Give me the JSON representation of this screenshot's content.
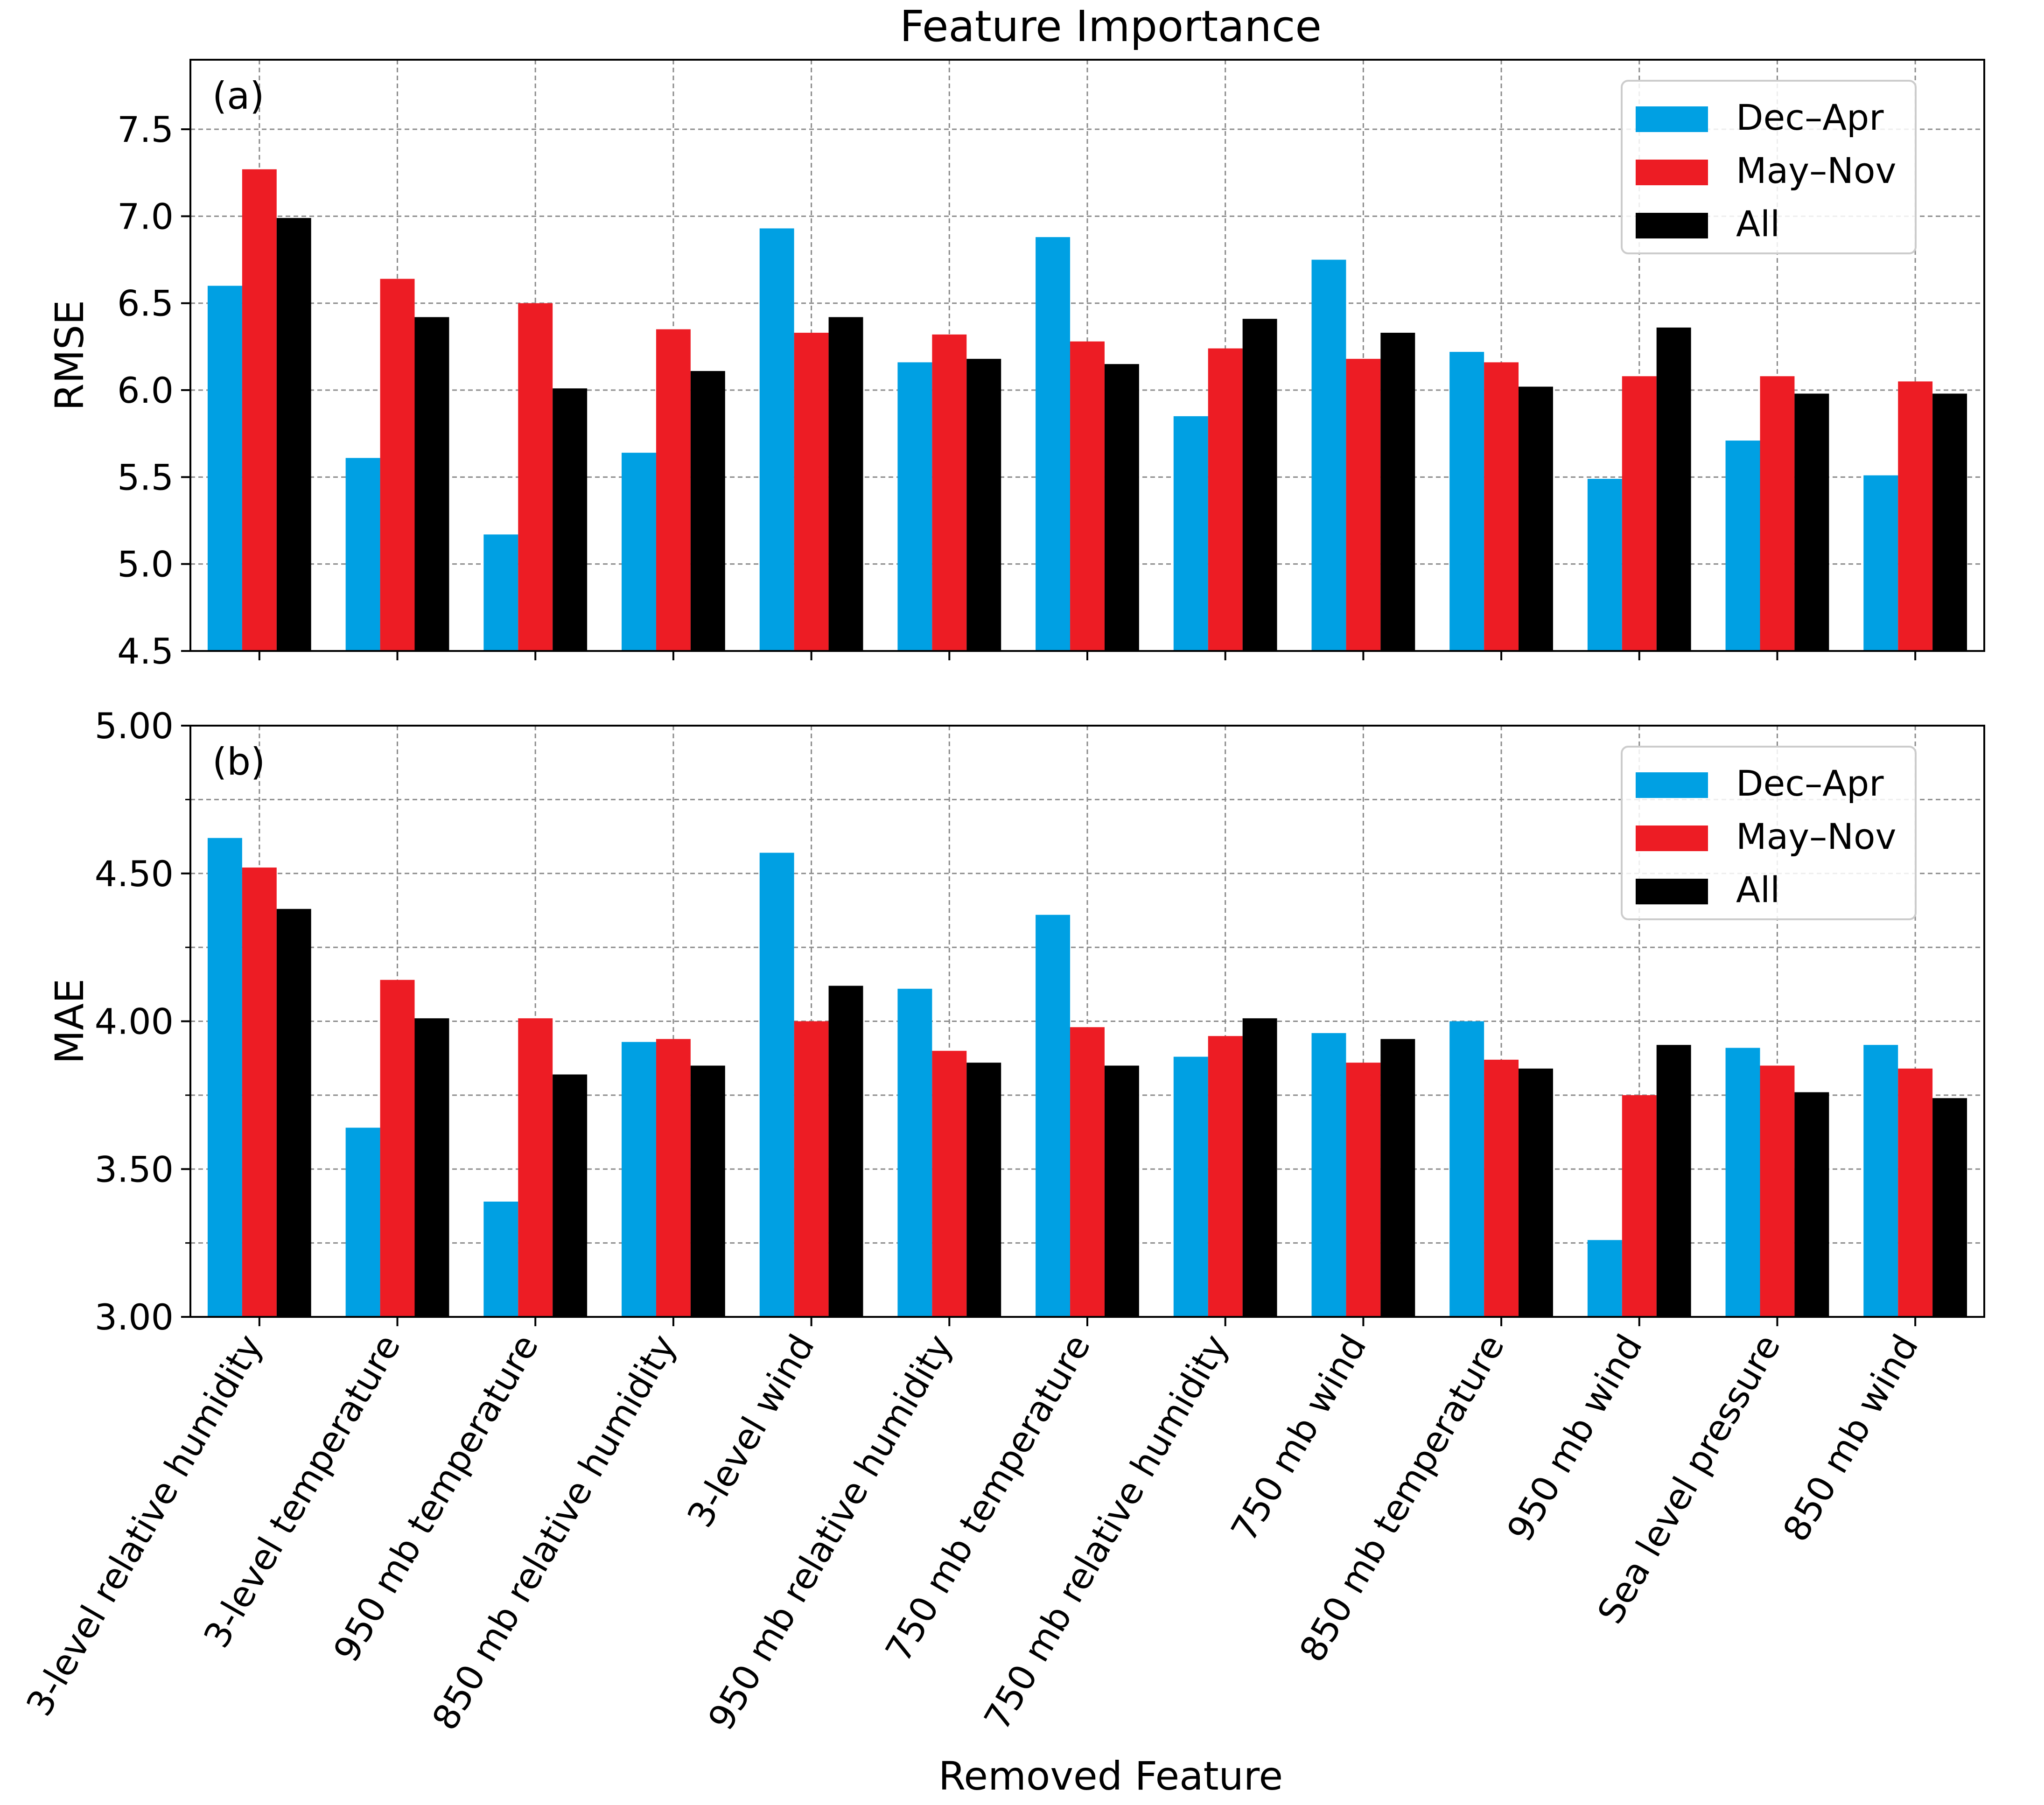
{
  "chart_data": {
    "type": "bar",
    "title": "Feature Importance",
    "xlabel": "Removed Feature",
    "categories": [
      "3-level relative humidity",
      "3-level temperature",
      "950 mb temperature",
      "850 mb relative humidity",
      "3-level wind",
      "950 mb relative humidity",
      "750 mb temperature",
      "750 mb relative humidity",
      "750 mb wind",
      "850 mb temperature",
      "950 mb wind",
      "Sea level pressure",
      "850 mb wind"
    ],
    "colors": {
      "Dec–Apr": "#00a0e3",
      "May–Nov": "#ed1c24",
      "All": "#000000"
    },
    "grid": true,
    "legend_position": "top-right",
    "panels": [
      {
        "label": "(a)",
        "ylabel": "RMSE",
        "ylim": [
          4.5,
          7.9
        ],
        "yticks": [
          "4.5",
          "5.0",
          "5.5",
          "6.0",
          "6.5",
          "7.0",
          "7.5"
        ],
        "minor_yticks": [],
        "series": [
          {
            "name": "Dec–Apr",
            "values": [
              6.6,
              5.61,
              5.17,
              5.64,
              6.93,
              6.16,
              6.88,
              5.85,
              6.75,
              6.22,
              5.49,
              5.71,
              5.51
            ]
          },
          {
            "name": "May–Nov",
            "values": [
              7.27,
              6.64,
              6.5,
              6.35,
              6.33,
              6.32,
              6.28,
              6.24,
              6.18,
              6.16,
              6.08,
              6.08,
              6.05
            ]
          },
          {
            "name": "All",
            "values": [
              6.99,
              6.42,
              6.01,
              6.11,
              6.42,
              6.18,
              6.15,
              6.41,
              6.33,
              6.02,
              6.36,
              5.98,
              5.98
            ]
          }
        ]
      },
      {
        "label": "(b)",
        "ylabel": "MAE",
        "ylim": [
          3.0,
          5.0
        ],
        "yticks": [
          "3.00",
          "3.50",
          "4.00",
          "4.50",
          "5.00"
        ],
        "minor_yticks": [
          3.25,
          3.75,
          4.25,
          4.75
        ],
        "series": [
          {
            "name": "Dec–Apr",
            "values": [
              4.62,
              3.64,
              3.39,
              3.93,
              4.57,
              4.11,
              4.36,
              3.88,
              3.96,
              4.0,
              3.26,
              3.91,
              3.92
            ]
          },
          {
            "name": "May–Nov",
            "values": [
              4.52,
              4.14,
              4.01,
              3.94,
              4.0,
              3.9,
              3.98,
              3.95,
              3.86,
              3.87,
              3.75,
              3.85,
              3.84
            ]
          },
          {
            "name": "All",
            "values": [
              4.38,
              4.01,
              3.82,
              3.85,
              4.12,
              3.86,
              3.85,
              4.01,
              3.94,
              3.84,
              3.92,
              3.76,
              3.74
            ]
          }
        ]
      }
    ]
  }
}
